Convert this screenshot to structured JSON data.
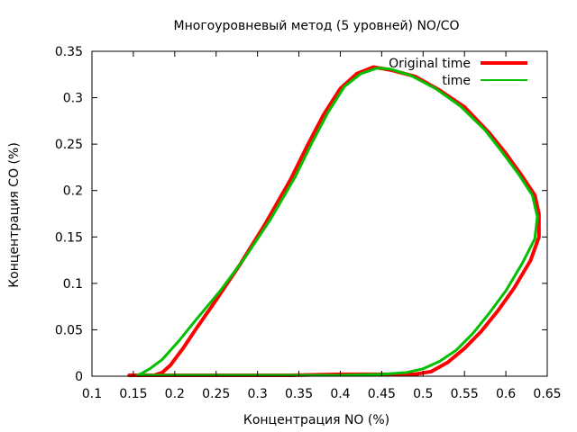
{
  "chart_data": {
    "type": "line",
    "title": "Многоуровневый метод (5 уровней) NO/CO",
    "xlabel": "Концентрация NO (%)",
    "ylabel": "Концентрация CO (%)",
    "xlim": [
      0.1,
      0.65
    ],
    "ylim": [
      0,
      0.35
    ],
    "xticks": [
      "0.1",
      "0.15",
      "0.2",
      "0.25",
      "0.3",
      "0.35",
      "0.4",
      "0.45",
      "0.5",
      "0.55",
      "0.6",
      "0.65"
    ],
    "yticks": [
      "0",
      "0.05",
      "0.1",
      "0.15",
      "0.2",
      "0.25",
      "0.3",
      "0.35"
    ],
    "grid": false,
    "legend_position": "top-right",
    "series": [
      {
        "name": "Original time",
        "color": "#ff0000",
        "points": [
          [
            0.145,
            0.001
          ],
          [
            0.19,
            0.001
          ],
          [
            0.25,
            0.001
          ],
          [
            0.3,
            0.001
          ],
          [
            0.34,
            0.001
          ],
          [
            0.4,
            0.002
          ],
          [
            0.45,
            0.002
          ],
          [
            0.49,
            0.002
          ],
          [
            0.51,
            0.005
          ],
          [
            0.53,
            0.015
          ],
          [
            0.55,
            0.03
          ],
          [
            0.57,
            0.048
          ],
          [
            0.59,
            0.07
          ],
          [
            0.61,
            0.095
          ],
          [
            0.63,
            0.125
          ],
          [
            0.64,
            0.15
          ],
          [
            0.64,
            0.175
          ],
          [
            0.635,
            0.195
          ],
          [
            0.62,
            0.215
          ],
          [
            0.6,
            0.24
          ],
          [
            0.58,
            0.262
          ],
          [
            0.55,
            0.29
          ],
          [
            0.52,
            0.308
          ],
          [
            0.49,
            0.323
          ],
          [
            0.46,
            0.33
          ],
          [
            0.44,
            0.333
          ],
          [
            0.42,
            0.326
          ],
          [
            0.4,
            0.31
          ],
          [
            0.38,
            0.282
          ],
          [
            0.36,
            0.248
          ],
          [
            0.34,
            0.212
          ],
          [
            0.31,
            0.165
          ],
          [
            0.28,
            0.122
          ],
          [
            0.25,
            0.082
          ],
          [
            0.225,
            0.05
          ],
          [
            0.21,
            0.03
          ],
          [
            0.195,
            0.012
          ],
          [
            0.185,
            0.004
          ],
          [
            0.175,
            0.001
          ],
          [
            0.165,
            0.001
          ],
          [
            0.145,
            0.001
          ]
        ]
      },
      {
        "name": "time",
        "color": "#00c000",
        "points": [
          [
            0.155,
            0.001
          ],
          [
            0.2,
            0.001
          ],
          [
            0.25,
            0.001
          ],
          [
            0.3,
            0.001
          ],
          [
            0.35,
            0.001
          ],
          [
            0.4,
            0.001
          ],
          [
            0.45,
            0.002
          ],
          [
            0.48,
            0.004
          ],
          [
            0.5,
            0.008
          ],
          [
            0.52,
            0.016
          ],
          [
            0.54,
            0.028
          ],
          [
            0.56,
            0.046
          ],
          [
            0.58,
            0.068
          ],
          [
            0.6,
            0.092
          ],
          [
            0.62,
            0.122
          ],
          [
            0.635,
            0.148
          ],
          [
            0.638,
            0.172
          ],
          [
            0.632,
            0.195
          ],
          [
            0.615,
            0.218
          ],
          [
            0.595,
            0.242
          ],
          [
            0.575,
            0.265
          ],
          [
            0.545,
            0.291
          ],
          [
            0.515,
            0.31
          ],
          [
            0.485,
            0.324
          ],
          [
            0.46,
            0.331
          ],
          [
            0.445,
            0.332
          ],
          [
            0.425,
            0.326
          ],
          [
            0.405,
            0.312
          ],
          [
            0.385,
            0.284
          ],
          [
            0.365,
            0.25
          ],
          [
            0.345,
            0.214
          ],
          [
            0.315,
            0.168
          ],
          [
            0.285,
            0.128
          ],
          [
            0.255,
            0.092
          ],
          [
            0.225,
            0.06
          ],
          [
            0.205,
            0.038
          ],
          [
            0.185,
            0.018
          ],
          [
            0.17,
            0.008
          ],
          [
            0.16,
            0.003
          ],
          [
            0.155,
            0.001
          ]
        ]
      }
    ]
  }
}
